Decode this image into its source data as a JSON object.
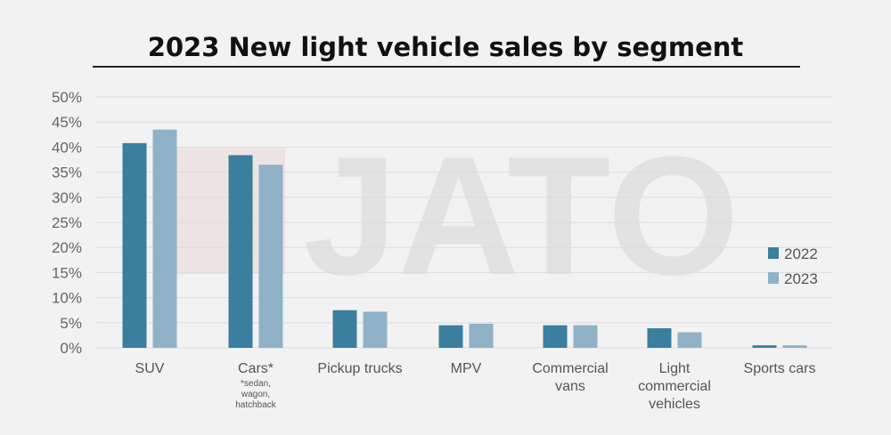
{
  "chart_data": {
    "type": "bar",
    "title": "2023 New light vehicle sales by segment",
    "categories": [
      "SUV",
      "Cars*",
      "Pickup trucks",
      "MPV",
      "Commercial vans",
      "Light commercial vehicles",
      "Sports cars"
    ],
    "category_notes": {
      "Cars*": "*sedan, wagon, hatchback"
    },
    "series": [
      {
        "name": "2022",
        "color": "#3a7f9e",
        "values": [
          40.8,
          38.4,
          7.5,
          4.5,
          4.5,
          3.9,
          0.5
        ]
      },
      {
        "name": "2023",
        "color": "#8fb2c8",
        "values": [
          43.5,
          36.5,
          7.2,
          4.8,
          4.5,
          3.1,
          0.5
        ]
      }
    ],
    "ylim": [
      0,
      50
    ],
    "yticks": [
      "0%",
      "5%",
      "10%",
      "15%",
      "20%",
      "25%",
      "30%",
      "35%",
      "40%",
      "45%",
      "50%"
    ],
    "grid": true,
    "legend": "right",
    "watermark": "JATO"
  }
}
